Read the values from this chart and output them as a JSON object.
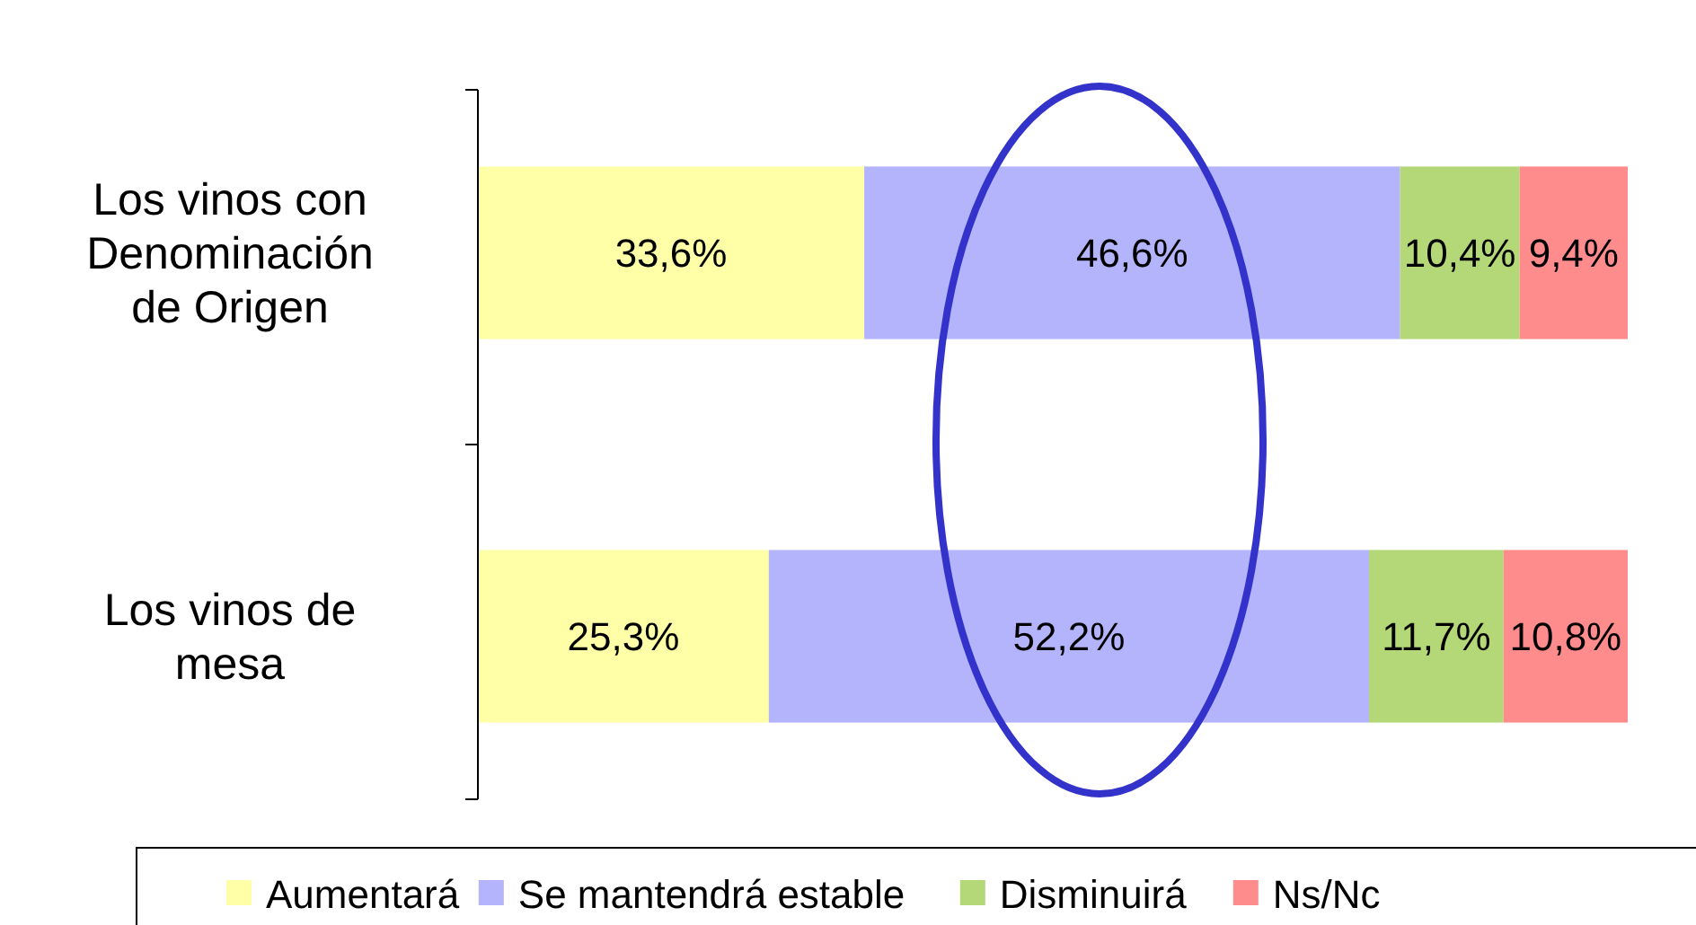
{
  "chart_data": {
    "type": "bar",
    "orientation": "horizontal",
    "stacked": true,
    "categories": [
      "Los vinos con Denominación de Origen",
      "Los vinos de mesa"
    ],
    "series": [
      {
        "name": "Aumentará",
        "color": "#ffffa8",
        "values": [
          33.6,
          25.3
        ],
        "value_labels": [
          "33,6%",
          "25,3%"
        ]
      },
      {
        "name": "Se mantendrá estable",
        "color": "#b4b4fc",
        "values": [
          46.6,
          52.2
        ],
        "value_labels": [
          "46,6%",
          "52,2%"
        ]
      },
      {
        "name": "Disminuirá",
        "color": "#b4d878",
        "values": [
          10.4,
          11.7
        ],
        "value_labels": [
          "10,4%",
          "11,7%"
        ]
      },
      {
        "name": "Ns/Nc",
        "color": "#ff8c8c",
        "values": [
          9.4,
          10.8
        ],
        "value_labels": [
          "9,4%",
          "10,8%"
        ]
      }
    ],
    "legend": "bottom"
  }
}
